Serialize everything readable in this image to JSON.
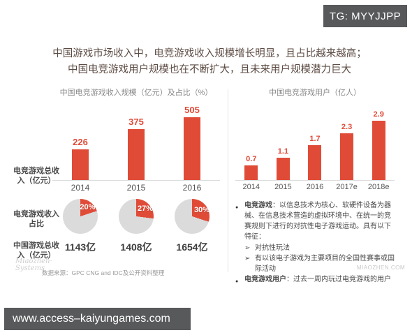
{
  "badge": {
    "label": "TG: MYYJJPP"
  },
  "footer_bar": {
    "url": "www.access–kaiyungames.com"
  },
  "title": {
    "line1": "中国游戏市场收入中，电竞游戏收入规模增长明显，且占比越来越高；",
    "line2": "中国电竞游戏用户规模也在不断扩大，且未来用户规模潜力巨大"
  },
  "colors": {
    "accent_red": "#E04B38",
    "pie_rest_gray": "#DBDBDB",
    "badge_bg": "#58595B",
    "title_text": "#5C4B43"
  },
  "left_panel": {
    "row_labels": {
      "revenue": [
        "电竞游戏总收",
        "入（亿元）"
      ],
      "share": [
        "电竞游戏收入",
        "占比"
      ],
      "total": [
        "中国游戏总收",
        "入（亿元）"
      ]
    },
    "logo": [
      "Miaozhen·",
      "Systems"
    ],
    "source_note": "数据来源：GPC CNG and IDC及公开资料整理"
  },
  "right_panel": {
    "bullets": [
      {
        "term": "电竞游戏",
        "text": "：以信息技术为核心、软硬件设备为器械、在信息技术营造的虚拟环境中、在统一的竞赛规则下进行的对抗性电子游戏运动。具有以下特征：",
        "subs": [
          "对抗性玩法",
          "有以该电子游戏为主要项目的全国性赛事或国际活动"
        ]
      },
      {
        "term": "电竞游戏用户",
        "text": "：过去一周内玩过电竞游戏的用户",
        "subs": []
      }
    ],
    "watermark": "MIAOZHEN.COM"
  },
  "chart_data": [
    {
      "type": "bar",
      "title": "中国电竞游戏收入规模（亿元）及占比（%）",
      "categories": [
        "2014",
        "2015",
        "2016"
      ],
      "values": [
        226,
        375,
        505
      ],
      "ylabel": "电竞游戏总收入（亿元）",
      "ylim": [
        0,
        505
      ],
      "bar_color": "#E04B38",
      "legend_position": "none",
      "grid": false
    },
    {
      "type": "pie",
      "title": "电竞游戏收入占比",
      "categories": [
        "2014",
        "2015",
        "2016"
      ],
      "values": [
        20,
        27,
        30
      ],
      "unit": "%",
      "slice_color": "#E04B38",
      "rest_color": "#DBDBDB",
      "totals_label": "中国游戏总收入（亿元）",
      "totals": [
        "1143亿",
        "1408亿",
        "1654亿"
      ]
    },
    {
      "type": "bar",
      "title": "中国电竞游戏用户（亿人）",
      "categories": [
        "2014",
        "2015",
        "2016",
        "2017e",
        "2018e"
      ],
      "values": [
        0.7,
        1.1,
        1.7,
        2.3,
        2.9
      ],
      "ylim": [
        0,
        2.9
      ],
      "bar_color": "#E04B38",
      "legend_position": "none",
      "grid": false
    }
  ]
}
